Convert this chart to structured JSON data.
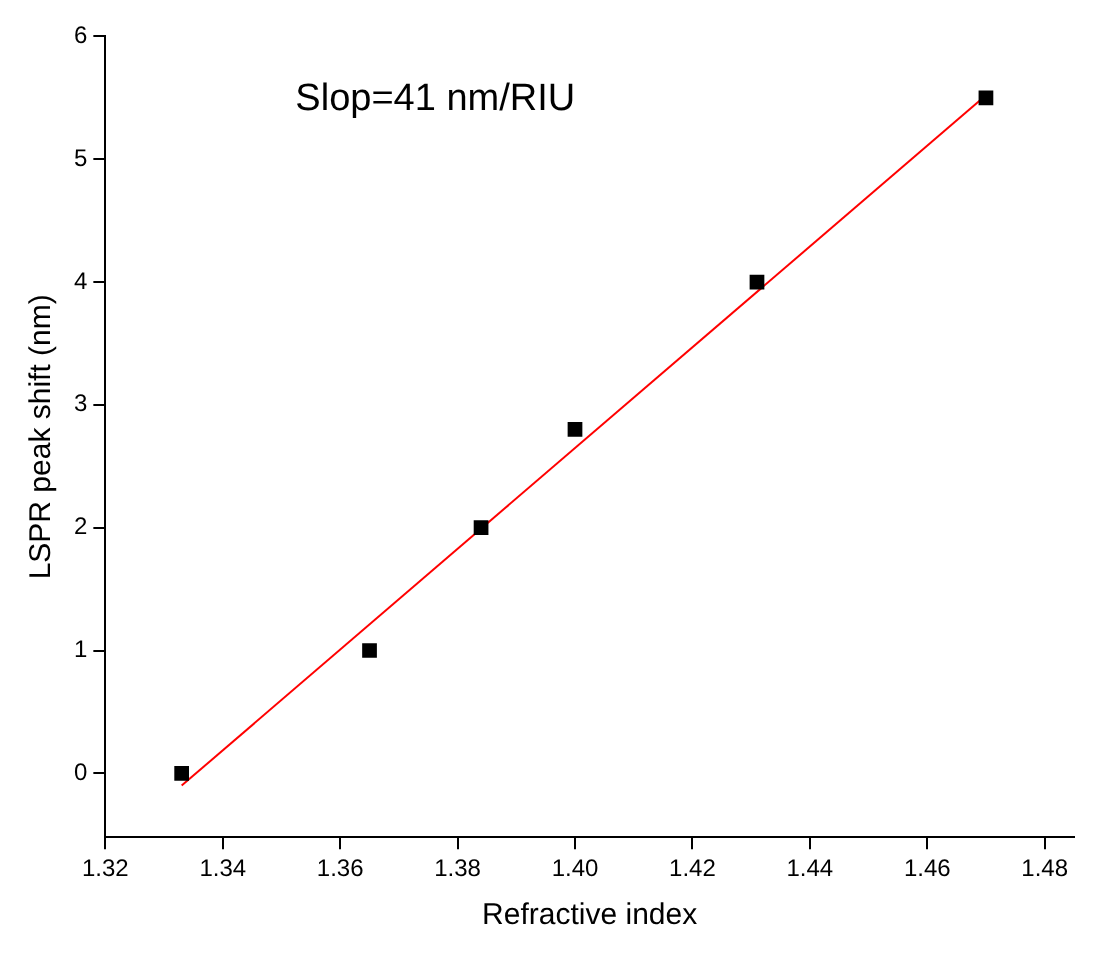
{
  "chart_data": {
    "type": "scatter",
    "xlabel": "Refractive index",
    "ylabel": "LSPR peak shift (nm)",
    "annotations": [
      "Slop=41 nm/RIU"
    ],
    "xlim": [
      1.32,
      1.485
    ],
    "xticks": [
      {
        "value": 1.32,
        "label": "1.32"
      },
      {
        "value": 1.34,
        "label": "1.34"
      },
      {
        "value": 1.36,
        "label": "1.36"
      },
      {
        "value": 1.38,
        "label": "1.38"
      },
      {
        "value": 1.4,
        "label": "1.40"
      },
      {
        "value": 1.42,
        "label": "1.42"
      },
      {
        "value": 1.44,
        "label": "1.44"
      },
      {
        "value": 1.46,
        "label": "1.46"
      },
      {
        "value": 1.48,
        "label": "1.48"
      }
    ],
    "ylim": [
      -0.52,
      6
    ],
    "yticks": [
      0,
      1,
      2,
      3,
      4,
      5,
      6
    ],
    "grid": false,
    "legend": false,
    "series": [
      {
        "type": "scatter",
        "color": "#000000",
        "marker": "square",
        "x": [
          1.333,
          1.365,
          1.384,
          1.4,
          1.431,
          1.47
        ],
        "values": [
          0,
          1,
          2,
          2.8,
          4,
          5.5
        ]
      },
      {
        "type": "line",
        "color": "#ff0000",
        "marker": "none",
        "x": [
          1.333,
          1.47
        ],
        "values": [
          -0.1,
          5.52
        ]
      }
    ]
  }
}
